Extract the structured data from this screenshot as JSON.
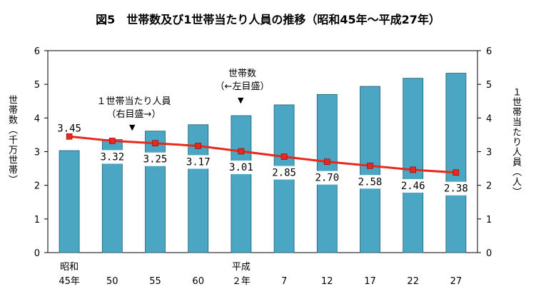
{
  "title": "図5　世帯数及び1世帯当たり人員の推移（昭和45年～平成27年）",
  "chart_data": {
    "type": "bar+line",
    "title": "図5　世帯数及び1世帯当たり人員の推移（昭和45年～平成27年）",
    "categories": [
      [
        "昭和",
        "45年"
      ],
      [
        "",
        "50"
      ],
      [
        "",
        "55"
      ],
      [
        "",
        "60"
      ],
      [
        "平成",
        "２年"
      ],
      [
        "",
        "7"
      ],
      [
        "",
        "12"
      ],
      [
        "",
        "17"
      ],
      [
        "",
        "22"
      ],
      [
        "",
        "27"
      ]
    ],
    "left_axis": {
      "label": "世帯数（千万世帯）",
      "ylim": [
        0,
        6
      ],
      "ticks": [
        "0",
        "1",
        "2",
        "3",
        "4",
        "5",
        "6"
      ]
    },
    "right_axis": {
      "label": "１世帯当たり人員（人）",
      "ylim": [
        0,
        6
      ],
      "ticks": [
        "0",
        "1",
        "2",
        "3",
        "4",
        "5",
        "6"
      ]
    },
    "series": [
      {
        "name": "世帯数",
        "type": "bar",
        "axis": "left",
        "values": [
          3.03,
          3.36,
          3.61,
          3.8,
          4.07,
          4.39,
          4.7,
          4.94,
          5.18,
          5.33
        ],
        "color": "#4aa6c2"
      },
      {
        "name": "１世帯当たり人員",
        "type": "line",
        "axis": "right",
        "values": [
          3.45,
          3.32,
          3.25,
          3.17,
          3.01,
          2.85,
          2.7,
          2.58,
          2.46,
          2.38
        ],
        "labels": [
          "3.45",
          "3.32",
          "3.25",
          "3.17",
          "3.01",
          "2.85",
          "2.70",
          "2.58",
          "2.46",
          "2.38"
        ],
        "color": "#e8291c",
        "marker_color": "#e8291c"
      }
    ],
    "annotations": [
      {
        "lines": [
          "１世帯当たり人員",
          "（右目盛→）"
        ]
      },
      {
        "lines": [
          "世帯数",
          "（←左目盛）"
        ]
      }
    ],
    "grid": false
  }
}
